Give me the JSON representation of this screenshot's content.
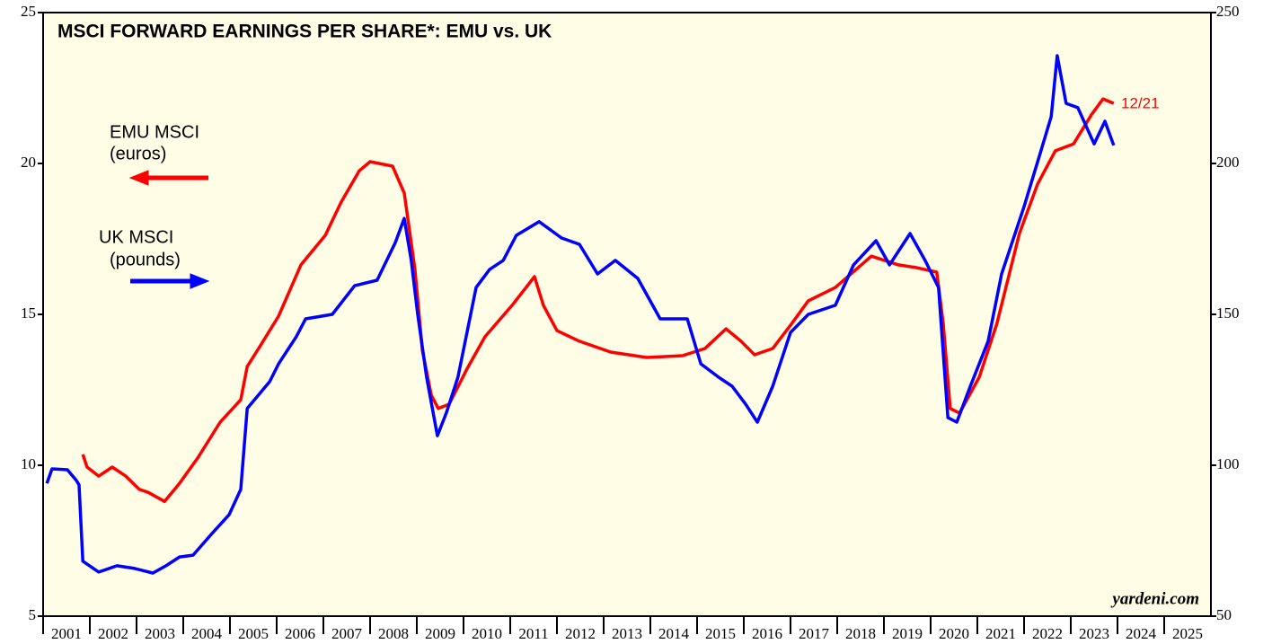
{
  "chart_data": {
    "type": "line",
    "title": "MSCI FORWARD EARNINGS PER SHARE*: EMU vs. UK",
    "legend_texts": [
      [
        "EMU MSCI",
        "(euros)"
      ],
      [
        "UK MSCI",
        "(pounds)"
      ]
    ],
    "annotation": "12/21",
    "source": "yardeni.com",
    "xlim": [
      2001,
      2026
    ],
    "xticks": [
      2001,
      2002,
      2003,
      2004,
      2005,
      2006,
      2007,
      2008,
      2009,
      2010,
      2011,
      2012,
      2013,
      2014,
      2015,
      2016,
      2017,
      2018,
      2019,
      2020,
      2021,
      2022,
      2023,
      2024,
      2025
    ],
    "ylim": [
      5,
      25
    ],
    "yticks": [
      5,
      10,
      15,
      20,
      25
    ],
    "y2lim": [
      50,
      250
    ],
    "y2ticks": [
      50,
      100,
      150,
      200,
      250
    ],
    "series": [
      {
        "name": "EMU MSCI",
        "color": "#ff0000",
        "axis": "y",
        "x": [
          2001.85,
          2001.94,
          2002.19,
          2002.48,
          2002.77,
          2003.06,
          2003.25,
          2003.6,
          2003.92,
          2004.31,
          2004.79,
          2005.23,
          2005.37,
          2005.65,
          2006.04,
          2006.52,
          2007.04,
          2007.38,
          2007.77,
          2008.0,
          2008.48,
          2008.73,
          2008.96,
          2009.12,
          2009.31,
          2009.46,
          2009.69,
          2010.08,
          2010.46,
          2011.04,
          2011.52,
          2011.71,
          2012.0,
          2012.48,
          2013.15,
          2013.92,
          2014.69,
          2015.17,
          2015.62,
          2015.94,
          2016.23,
          2016.62,
          2017.0,
          2017.38,
          2017.96,
          2018.73,
          2019.31,
          2019.69,
          2020.13,
          2020.27,
          2020.42,
          2020.62,
          2021.04,
          2021.42,
          2021.9,
          2022.29,
          2022.67,
          2023.06,
          2023.44,
          2023.69,
          2023.92
        ],
        "values": [
          10.36,
          9.94,
          9.64,
          9.94,
          9.64,
          9.2,
          9.1,
          8.8,
          9.4,
          10.24,
          11.43,
          12.17,
          13.27,
          13.96,
          14.94,
          16.64,
          17.62,
          18.72,
          19.76,
          20.06,
          19.91,
          19.02,
          16.49,
          13.81,
          12.32,
          11.88,
          12.02,
          13.21,
          14.26,
          15.3,
          16.25,
          15.3,
          14.46,
          14.11,
          13.75,
          13.57,
          13.63,
          13.87,
          14.52,
          14.11,
          13.66,
          13.87,
          14.64,
          15.45,
          15.89,
          16.93,
          16.64,
          16.55,
          16.4,
          14.7,
          11.88,
          11.73,
          12.92,
          14.7,
          17.68,
          19.32,
          20.42,
          20.65,
          21.61,
          22.14,
          21.99
        ]
      },
      {
        "name": "UK MSCI",
        "color": "#0000ff",
        "axis": "y2",
        "x": [
          2001.08,
          2001.19,
          2001.52,
          2001.71,
          2001.77,
          2001.85,
          2002.19,
          2002.58,
          2002.96,
          2003.35,
          2003.63,
          2003.92,
          2004.21,
          2004.6,
          2004.98,
          2005.23,
          2005.37,
          2005.85,
          2006.04,
          2006.42,
          2006.62,
          2007.19,
          2007.67,
          2008.15,
          2008.54,
          2008.73,
          2008.88,
          2009.02,
          2009.21,
          2009.44,
          2009.63,
          2009.88,
          2010.27,
          2010.56,
          2010.85,
          2011.13,
          2011.62,
          2012.1,
          2012.48,
          2012.87,
          2013.25,
          2013.73,
          2014.21,
          2014.79,
          2015.08,
          2015.46,
          2015.75,
          2016.04,
          2016.29,
          2016.62,
          2017.0,
          2017.38,
          2017.96,
          2018.35,
          2018.83,
          2019.12,
          2019.56,
          2019.88,
          2020.17,
          2020.37,
          2020.56,
          2020.85,
          2021.23,
          2021.52,
          2022.0,
          2022.35,
          2022.58,
          2022.71,
          2022.9,
          2023.15,
          2023.5,
          2023.73,
          2023.92
        ],
        "values": [
          94.0,
          98.8,
          98.5,
          95.0,
          93.5,
          68.2,
          64.6,
          66.7,
          65.8,
          64.3,
          66.7,
          69.6,
          70.2,
          77.1,
          83.6,
          92.0,
          118.8,
          127.7,
          133.6,
          142.6,
          148.5,
          150.0,
          159.5,
          161.3,
          173.8,
          181.8,
          167.9,
          150.0,
          129.2,
          109.8,
          117.3,
          129.2,
          158.9,
          164.9,
          167.9,
          176.2,
          180.7,
          175.3,
          173.2,
          163.4,
          167.9,
          161.9,
          148.5,
          148.5,
          133.6,
          129.2,
          126.2,
          120.2,
          114.3,
          126.2,
          144.0,
          150.0,
          153.0,
          166.4,
          174.4,
          166.4,
          176.8,
          167.9,
          158.9,
          115.8,
          114.3,
          126.2,
          141.1,
          163.4,
          185.7,
          203.6,
          215.5,
          235.7,
          219.9,
          218.5,
          206.5,
          214.0,
          206.0
        ]
      }
    ]
  }
}
